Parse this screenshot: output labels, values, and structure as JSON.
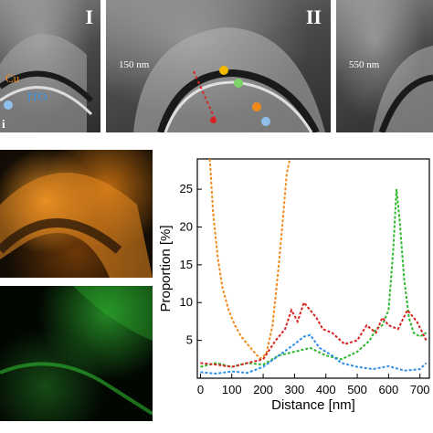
{
  "panels": {
    "left_labels": {
      "cu": "Cu",
      "ito": "ITO",
      "edge": "i"
    },
    "label_I": "I",
    "label_II": "II",
    "label_150": "150 nm",
    "label_550": "550 nm"
  },
  "colors": {
    "orange": "#f28a1b",
    "green": "#2db82d",
    "blue": "#2f8fe6",
    "red": "#d92323",
    "sem_dark": "#2d2d2d"
  },
  "icons": [
    "right-arrow-icon",
    "down-arrow-icon"
  ],
  "chart_data": {
    "type": "line",
    "xlabel": "Distance [nm]",
    "ylabel": "Proportion [%]",
    "xlim": [
      -10,
      730
    ],
    "ylim": [
      0,
      29
    ],
    "xticks": [
      "0",
      "100",
      "200",
      "300",
      "400",
      "500",
      "600",
      "700"
    ],
    "yticks": [
      "5",
      "10",
      "15",
      "20",
      "25"
    ],
    "series": [
      {
        "color": "#f28a1b",
        "x": [
          30,
          40,
          55,
          70,
          90,
          110,
          130,
          150,
          170,
          190,
          210,
          230,
          250,
          265,
          275,
          285
        ],
        "y": [
          29,
          22,
          16,
          12,
          9,
          7,
          5.5,
          4.5,
          3.5,
          2.6,
          3.2,
          7,
          15,
          22,
          27,
          29
        ]
      },
      {
        "color": "#2db82d",
        "x": [
          0,
          50,
          100,
          150,
          200,
          250,
          300,
          350,
          400,
          450,
          500,
          540,
          560,
          580,
          600,
          615,
          625,
          635,
          650,
          665,
          680,
          700,
          720
        ],
        "y": [
          1.5,
          2,
          1.5,
          2,
          1.8,
          3,
          3.5,
          4,
          3,
          2.5,
          3.5,
          5,
          6.5,
          7,
          9,
          17,
          25,
          21,
          13,
          8,
          6,
          5.5,
          6
        ]
      },
      {
        "color": "#2f8fe6",
        "x": [
          0,
          50,
          100,
          150,
          200,
          250,
          300,
          330,
          350,
          380,
          420,
          450,
          500,
          550,
          600,
          650,
          700,
          720
        ],
        "y": [
          0.8,
          0.6,
          0.9,
          0.7,
          1.5,
          3,
          4.5,
          5.5,
          5.7,
          4,
          3,
          2,
          1.5,
          1.2,
          1.6,
          1,
          1.2,
          2
        ]
      },
      {
        "color": "#d92323",
        "x": [
          0,
          50,
          100,
          150,
          200,
          240,
          270,
          290,
          310,
          330,
          350,
          370,
          390,
          420,
          460,
          500,
          530,
          560,
          580,
          600,
          630,
          660,
          690,
          720
        ],
        "y": [
          2,
          1.8,
          1.5,
          2,
          2.5,
          5,
          6.5,
          9,
          7.5,
          10,
          9,
          8,
          6.5,
          6,
          4.5,
          5,
          7,
          6,
          8,
          7,
          6.5,
          9,
          7.5,
          5
        ]
      }
    ]
  },
  "scan_line": {
    "dot_color": "#f07070"
  }
}
